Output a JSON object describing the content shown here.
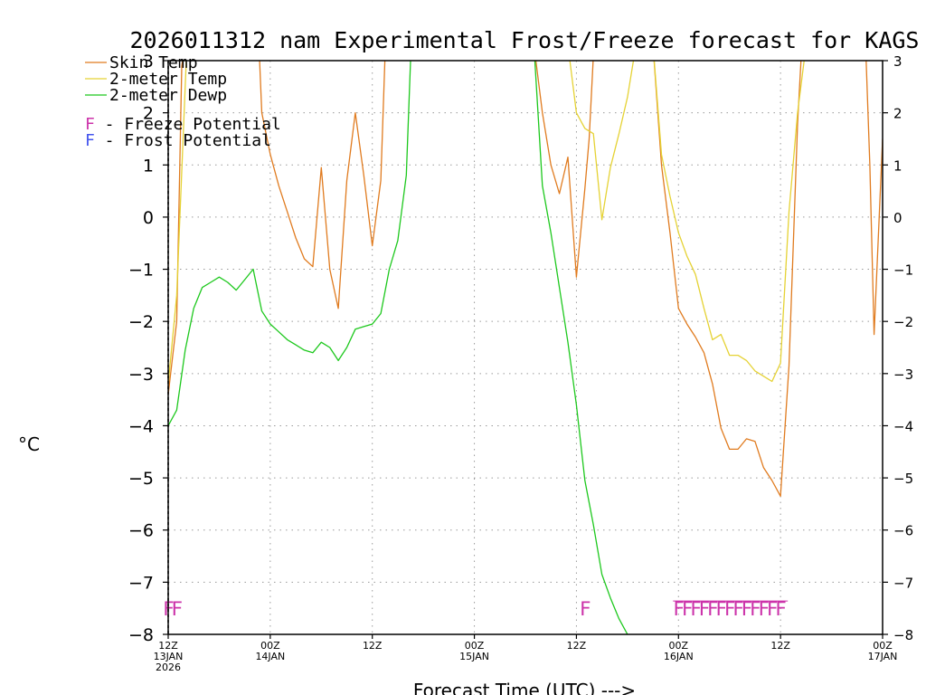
{
  "chart_data": {
    "type": "line",
    "title": "2026011312 nam Experimental Frost/Freeze forecast for KAGS",
    "xlabel": "Forecast Time (UTC) --->",
    "ylabel": "°C",
    "ylim": [
      -8,
      3
    ],
    "xlim": [
      0,
      84
    ],
    "x_unit": "forecast hours from 2026-01-13 12Z",
    "yticks": [
      -8,
      -7,
      -6,
      -5,
      -4,
      -3,
      -2,
      -1,
      0,
      1,
      2,
      3
    ],
    "ytick_labels": [
      "−8",
      "−7",
      "−6",
      "−5",
      "−4",
      "−3",
      "−2",
      "−1",
      "0",
      "1",
      "2",
      "3"
    ],
    "xticks": [
      {
        "hour": 0,
        "lines": [
          "12Z",
          "13JAN",
          "2026"
        ]
      },
      {
        "hour": 12,
        "lines": [
          "00Z",
          "14JAN"
        ]
      },
      {
        "hour": 24,
        "lines": [
          "12Z"
        ]
      },
      {
        "hour": 36,
        "lines": [
          "00Z",
          "15JAN"
        ]
      },
      {
        "hour": 48,
        "lines": [
          "12Z"
        ]
      },
      {
        "hour": 60,
        "lines": [
          "00Z",
          "16JAN"
        ]
      },
      {
        "hour": 72,
        "lines": [
          "12Z"
        ]
      },
      {
        "hour": 84,
        "lines": [
          "00Z",
          "17JAN"
        ]
      }
    ],
    "grid": true,
    "series": [
      {
        "name": "Skin Temp",
        "color": "#e07b1f",
        "points": [
          [
            0,
            -3.4
          ],
          [
            1,
            -2.0
          ],
          [
            1.6,
            2.9
          ],
          [
            2,
            3.3
          ],
          [
            10.7,
            3.2
          ],
          [
            11,
            2.0
          ],
          [
            12,
            1.2
          ],
          [
            13,
            0.6
          ],
          [
            14,
            0.1
          ],
          [
            15,
            -0.4
          ],
          [
            16,
            -0.8
          ],
          [
            17,
            -0.95
          ],
          [
            18,
            0.95
          ],
          [
            19,
            -1.0
          ],
          [
            20,
            -1.75
          ],
          [
            21,
            0.7
          ],
          [
            22,
            2.0
          ],
          [
            23,
            0.8
          ],
          [
            24,
            -0.55
          ],
          [
            25,
            0.7
          ],
          [
            25.5,
            3.1
          ],
          [
            26,
            3.3
          ],
          [
            43,
            3.3
          ],
          [
            44,
            2.0
          ],
          [
            45,
            1.0
          ],
          [
            46,
            0.45
          ],
          [
            47,
            1.15
          ],
          [
            48,
            -1.15
          ],
          [
            49,
            0.55
          ],
          [
            49.5,
            1.5
          ],
          [
            50,
            3.1
          ],
          [
            50.5,
            3.3
          ],
          [
            57,
            3.3
          ],
          [
            58,
            1.0
          ],
          [
            59,
            -0.3
          ],
          [
            60,
            -1.75
          ],
          [
            61,
            -2.05
          ],
          [
            62,
            -2.3
          ],
          [
            63,
            -2.6
          ],
          [
            64,
            -3.2
          ],
          [
            65,
            -4.05
          ],
          [
            66,
            -4.45
          ],
          [
            67,
            -4.45
          ],
          [
            68,
            -4.25
          ],
          [
            69,
            -4.3
          ],
          [
            70,
            -4.8
          ],
          [
            71,
            -5.05
          ],
          [
            72,
            -5.35
          ],
          [
            73,
            -2.85
          ],
          [
            74,
            1.8
          ],
          [
            74.5,
            3.3
          ],
          [
            82,
            3.3
          ],
          [
            82.5,
            1.0
          ],
          [
            83,
            -2.25
          ],
          [
            84,
            1.5
          ]
        ]
      },
      {
        "name": "2-meter Temp",
        "color": "#e5d234",
        "points": [
          [
            0,
            -3.2
          ],
          [
            1,
            -1.5
          ],
          [
            2,
            2.5
          ],
          [
            2.2,
            3.3
          ],
          [
            47,
            3.3
          ],
          [
            48,
            2.0
          ],
          [
            49,
            1.7
          ],
          [
            50,
            1.6
          ],
          [
            51,
            -0.05
          ],
          [
            52,
            0.95
          ],
          [
            53,
            1.6
          ],
          [
            54,
            2.3
          ],
          [
            55,
            3.3
          ],
          [
            57,
            3.3
          ],
          [
            58,
            1.2
          ],
          [
            59,
            0.4
          ],
          [
            60,
            -0.3
          ],
          [
            61,
            -0.75
          ],
          [
            62,
            -1.1
          ],
          [
            63,
            -1.75
          ],
          [
            64,
            -2.35
          ],
          [
            65,
            -2.25
          ],
          [
            66,
            -2.65
          ],
          [
            67,
            -2.65
          ],
          [
            68,
            -2.75
          ],
          [
            69,
            -2.95
          ],
          [
            70,
            -3.05
          ],
          [
            71,
            -3.15
          ],
          [
            72,
            -2.8
          ],
          [
            73,
            0.1
          ],
          [
            74,
            2.0
          ],
          [
            75,
            3.3
          ]
        ]
      },
      {
        "name": "2-meter Dewp",
        "color": "#1dc81d",
        "points": [
          [
            0,
            -4.0
          ],
          [
            1,
            -3.7
          ],
          [
            2,
            -2.55
          ],
          [
            3,
            -1.75
          ],
          [
            4,
            -1.35
          ],
          [
            5,
            -1.25
          ],
          [
            6,
            -1.15
          ],
          [
            7,
            -1.25
          ],
          [
            8,
            -1.4
          ],
          [
            9,
            -1.2
          ],
          [
            10,
            -1.0
          ],
          [
            11,
            -1.8
          ],
          [
            12,
            -2.05
          ],
          [
            13,
            -2.2
          ],
          [
            14,
            -2.35
          ],
          [
            15,
            -2.45
          ],
          [
            16,
            -2.55
          ],
          [
            17,
            -2.6
          ],
          [
            18,
            -2.4
          ],
          [
            19,
            -2.5
          ],
          [
            20,
            -2.75
          ],
          [
            21,
            -2.5
          ],
          [
            22,
            -2.15
          ],
          [
            23,
            -2.1
          ],
          [
            24,
            -2.05
          ],
          [
            25,
            -1.85
          ],
          [
            26,
            -1.0
          ],
          [
            27,
            -0.45
          ],
          [
            28,
            0.8
          ],
          [
            28.5,
            3.0
          ],
          [
            29,
            3.3
          ],
          [
            43,
            3.3
          ],
          [
            44,
            0.6
          ],
          [
            45,
            -0.3
          ],
          [
            46,
            -1.35
          ],
          [
            47,
            -2.4
          ],
          [
            48,
            -3.6
          ],
          [
            49,
            -5.05
          ],
          [
            50,
            -5.9
          ],
          [
            51,
            -6.85
          ],
          [
            52,
            -7.3
          ],
          [
            53,
            -7.7
          ],
          [
            54,
            -8.0
          ]
        ]
      }
    ],
    "legend": {
      "placement": "top-left",
      "entries": [
        {
          "label": "Skin Temp",
          "color": "#e07b1f"
        },
        {
          "label": "2-meter Temp",
          "color": "#e5d234"
        },
        {
          "label": "2-meter Dewp",
          "color": "#1dc81d"
        }
      ],
      "potential_entries": [
        {
          "letter": "F",
          "label": " - Freeze Potential",
          "color": "#cc33aa"
        },
        {
          "letter": "F",
          "label": " - Frost Potential",
          "color": "#4455ee"
        }
      ]
    },
    "freeze_potential_hours": [
      0,
      1,
      49,
      60,
      61,
      62,
      63,
      64,
      65,
      66,
      67,
      68,
      69,
      70,
      71,
      72
    ],
    "freeze_marker_level": -7.5,
    "freeze_letter": "F"
  }
}
